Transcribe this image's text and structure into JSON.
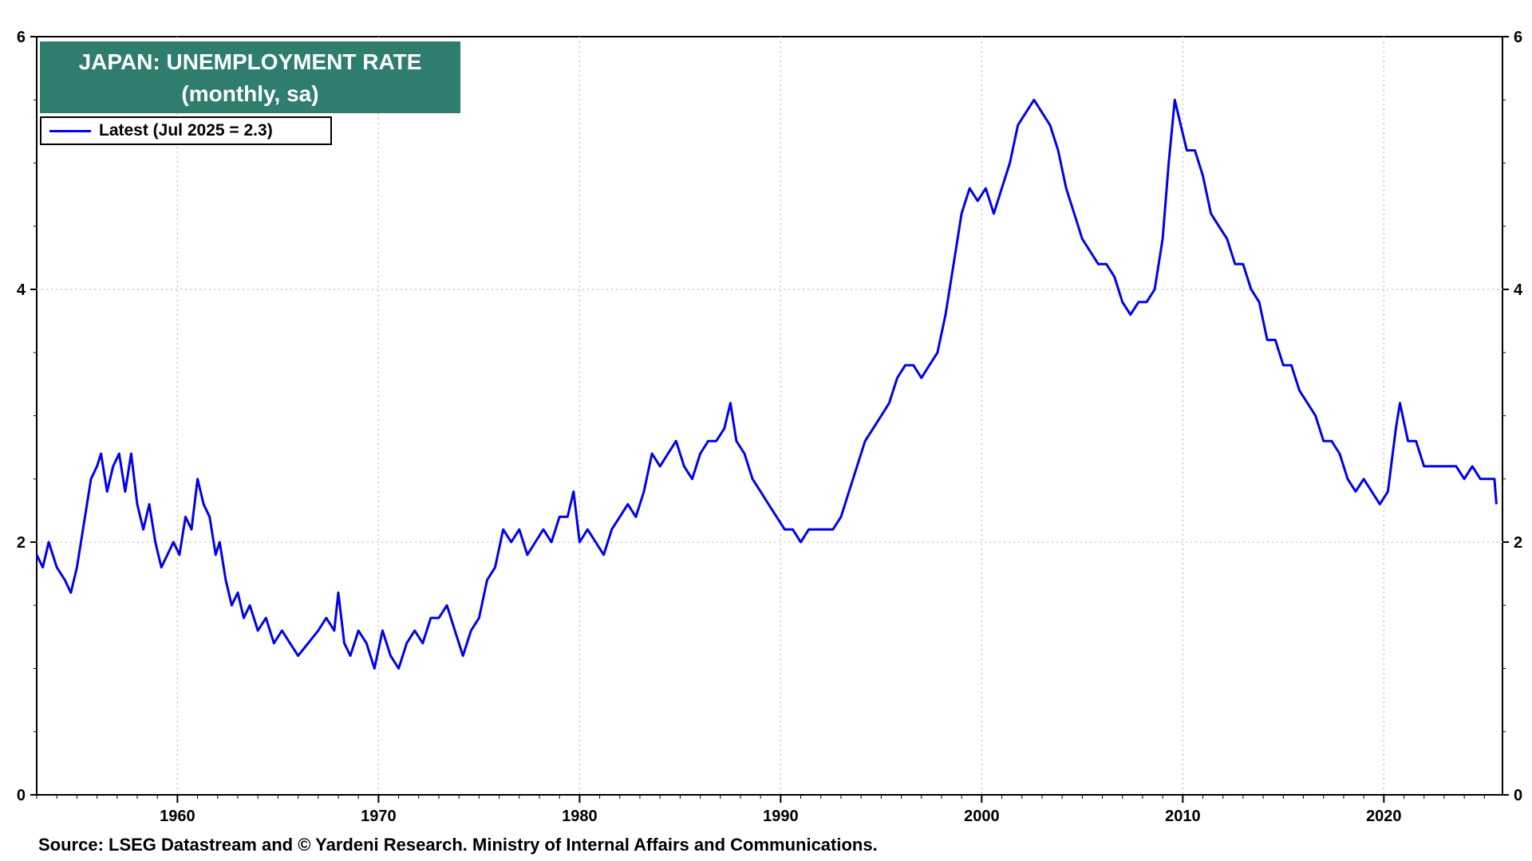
{
  "chart_data": {
    "type": "line",
    "title": "JAPAN: UNEMPLOYMENT RATE",
    "subtitle": "(monthly, sa)",
    "xlabel": "",
    "ylabel": "",
    "xlim": [
      1953.0,
      2025.9
    ],
    "ylim": [
      0,
      6
    ],
    "x_ticks": [
      "1960",
      "1970",
      "1980",
      "1990",
      "2000",
      "2010",
      "2020"
    ],
    "y_ticks": [
      "0",
      "2",
      "4",
      "6"
    ],
    "grid": true,
    "legend_position": "top-left",
    "series": [
      {
        "name": "Latest (Jul 2025 = 2.3)",
        "color": "#0000ee",
        "points": [
          [
            1953.0,
            1.9
          ],
          [
            1953.3,
            1.8
          ],
          [
            1953.6,
            2.0
          ],
          [
            1954.0,
            1.8
          ],
          [
            1954.4,
            1.7
          ],
          [
            1954.7,
            1.6
          ],
          [
            1955.0,
            1.8
          ],
          [
            1955.4,
            2.2
          ],
          [
            1955.7,
            2.5
          ],
          [
            1956.0,
            2.6
          ],
          [
            1956.2,
            2.7
          ],
          [
            1956.5,
            2.4
          ],
          [
            1956.8,
            2.6
          ],
          [
            1957.1,
            2.7
          ],
          [
            1957.4,
            2.4
          ],
          [
            1957.7,
            2.7
          ],
          [
            1958.0,
            2.3
          ],
          [
            1958.3,
            2.1
          ],
          [
            1958.6,
            2.3
          ],
          [
            1958.9,
            2.0
          ],
          [
            1959.2,
            1.8
          ],
          [
            1959.5,
            1.9
          ],
          [
            1959.8,
            2.0
          ],
          [
            1960.1,
            1.9
          ],
          [
            1960.4,
            2.2
          ],
          [
            1960.7,
            2.1
          ],
          [
            1961.0,
            2.5
          ],
          [
            1961.3,
            2.3
          ],
          [
            1961.6,
            2.2
          ],
          [
            1961.9,
            1.9
          ],
          [
            1962.1,
            2.0
          ],
          [
            1962.4,
            1.7
          ],
          [
            1962.7,
            1.5
          ],
          [
            1963.0,
            1.6
          ],
          [
            1963.3,
            1.4
          ],
          [
            1963.6,
            1.5
          ],
          [
            1964.0,
            1.3
          ],
          [
            1964.4,
            1.4
          ],
          [
            1964.8,
            1.2
          ],
          [
            1965.2,
            1.3
          ],
          [
            1965.6,
            1.2
          ],
          [
            1966.0,
            1.1
          ],
          [
            1966.5,
            1.2
          ],
          [
            1967.0,
            1.3
          ],
          [
            1967.4,
            1.4
          ],
          [
            1967.8,
            1.3
          ],
          [
            1968.0,
            1.6
          ],
          [
            1968.3,
            1.2
          ],
          [
            1968.6,
            1.1
          ],
          [
            1969.0,
            1.3
          ],
          [
            1969.4,
            1.2
          ],
          [
            1969.8,
            1.0
          ],
          [
            1970.2,
            1.3
          ],
          [
            1970.6,
            1.1
          ],
          [
            1971.0,
            1.0
          ],
          [
            1971.4,
            1.2
          ],
          [
            1971.8,
            1.3
          ],
          [
            1972.2,
            1.2
          ],
          [
            1972.6,
            1.4
          ],
          [
            1973.0,
            1.4
          ],
          [
            1973.4,
            1.5
          ],
          [
            1973.8,
            1.3
          ],
          [
            1974.2,
            1.1
          ],
          [
            1974.6,
            1.3
          ],
          [
            1975.0,
            1.4
          ],
          [
            1975.4,
            1.7
          ],
          [
            1975.8,
            1.8
          ],
          [
            1976.2,
            2.1
          ],
          [
            1976.6,
            2.0
          ],
          [
            1977.0,
            2.1
          ],
          [
            1977.4,
            1.9
          ],
          [
            1977.8,
            2.0
          ],
          [
            1978.2,
            2.1
          ],
          [
            1978.6,
            2.0
          ],
          [
            1979.0,
            2.2
          ],
          [
            1979.4,
            2.2
          ],
          [
            1979.7,
            2.4
          ],
          [
            1980.0,
            2.0
          ],
          [
            1980.4,
            2.1
          ],
          [
            1980.8,
            2.0
          ],
          [
            1981.2,
            1.9
          ],
          [
            1981.6,
            2.1
          ],
          [
            1982.0,
            2.2
          ],
          [
            1982.4,
            2.3
          ],
          [
            1982.8,
            2.2
          ],
          [
            1983.2,
            2.4
          ],
          [
            1983.6,
            2.7
          ],
          [
            1984.0,
            2.6
          ],
          [
            1984.4,
            2.7
          ],
          [
            1984.8,
            2.8
          ],
          [
            1985.2,
            2.6
          ],
          [
            1985.6,
            2.5
          ],
          [
            1986.0,
            2.7
          ],
          [
            1986.4,
            2.8
          ],
          [
            1986.8,
            2.8
          ],
          [
            1987.2,
            2.9
          ],
          [
            1987.5,
            3.1
          ],
          [
            1987.8,
            2.8
          ],
          [
            1988.2,
            2.7
          ],
          [
            1988.6,
            2.5
          ],
          [
            1989.0,
            2.4
          ],
          [
            1989.4,
            2.3
          ],
          [
            1989.8,
            2.2
          ],
          [
            1990.2,
            2.1
          ],
          [
            1990.6,
            2.1
          ],
          [
            1991.0,
            2.0
          ],
          [
            1991.4,
            2.1
          ],
          [
            1991.8,
            2.1
          ],
          [
            1992.2,
            2.1
          ],
          [
            1992.6,
            2.1
          ],
          [
            1993.0,
            2.2
          ],
          [
            1993.4,
            2.4
          ],
          [
            1993.8,
            2.6
          ],
          [
            1994.2,
            2.8
          ],
          [
            1994.6,
            2.9
          ],
          [
            1995.0,
            3.0
          ],
          [
            1995.4,
            3.1
          ],
          [
            1995.8,
            3.3
          ],
          [
            1996.2,
            3.4
          ],
          [
            1996.6,
            3.4
          ],
          [
            1997.0,
            3.3
          ],
          [
            1997.4,
            3.4
          ],
          [
            1997.8,
            3.5
          ],
          [
            1998.2,
            3.8
          ],
          [
            1998.6,
            4.2
          ],
          [
            1999.0,
            4.6
          ],
          [
            1999.4,
            4.8
          ],
          [
            1999.8,
            4.7
          ],
          [
            2000.2,
            4.8
          ],
          [
            2000.6,
            4.6
          ],
          [
            2001.0,
            4.8
          ],
          [
            2001.4,
            5.0
          ],
          [
            2001.8,
            5.3
          ],
          [
            2002.2,
            5.4
          ],
          [
            2002.6,
            5.5
          ],
          [
            2003.0,
            5.4
          ],
          [
            2003.4,
            5.3
          ],
          [
            2003.8,
            5.1
          ],
          [
            2004.2,
            4.8
          ],
          [
            2004.6,
            4.6
          ],
          [
            2005.0,
            4.4
          ],
          [
            2005.4,
            4.3
          ],
          [
            2005.8,
            4.2
          ],
          [
            2006.2,
            4.2
          ],
          [
            2006.6,
            4.1
          ],
          [
            2007.0,
            3.9
          ],
          [
            2007.4,
            3.8
          ],
          [
            2007.8,
            3.9
          ],
          [
            2008.2,
            3.9
          ],
          [
            2008.6,
            4.0
          ],
          [
            2009.0,
            4.4
          ],
          [
            2009.3,
            5.0
          ],
          [
            2009.6,
            5.5
          ],
          [
            2009.9,
            5.3
          ],
          [
            2010.2,
            5.1
          ],
          [
            2010.6,
            5.1
          ],
          [
            2011.0,
            4.9
          ],
          [
            2011.4,
            4.6
          ],
          [
            2011.8,
            4.5
          ],
          [
            2012.2,
            4.4
          ],
          [
            2012.6,
            4.2
          ],
          [
            2013.0,
            4.2
          ],
          [
            2013.4,
            4.0
          ],
          [
            2013.8,
            3.9
          ],
          [
            2014.2,
            3.6
          ],
          [
            2014.6,
            3.6
          ],
          [
            2015.0,
            3.4
          ],
          [
            2015.4,
            3.4
          ],
          [
            2015.8,
            3.2
          ],
          [
            2016.2,
            3.1
          ],
          [
            2016.6,
            3.0
          ],
          [
            2017.0,
            2.8
          ],
          [
            2017.4,
            2.8
          ],
          [
            2017.8,
            2.7
          ],
          [
            2018.2,
            2.5
          ],
          [
            2018.6,
            2.4
          ],
          [
            2019.0,
            2.5
          ],
          [
            2019.4,
            2.4
          ],
          [
            2019.8,
            2.3
          ],
          [
            2020.2,
            2.4
          ],
          [
            2020.6,
            2.9
          ],
          [
            2020.8,
            3.1
          ],
          [
            2021.2,
            2.8
          ],
          [
            2021.6,
            2.8
          ],
          [
            2022.0,
            2.6
          ],
          [
            2022.4,
            2.6
          ],
          [
            2022.8,
            2.6
          ],
          [
            2023.2,
            2.6
          ],
          [
            2023.6,
            2.6
          ],
          [
            2024.0,
            2.5
          ],
          [
            2024.4,
            2.6
          ],
          [
            2024.8,
            2.5
          ],
          [
            2025.2,
            2.5
          ],
          [
            2025.5,
            2.5
          ],
          [
            2025.6,
            2.3
          ]
        ]
      }
    ]
  },
  "source": "Source: LSEG Datastream and © Yardeni Research. Ministry of Internal Affairs and Communications."
}
